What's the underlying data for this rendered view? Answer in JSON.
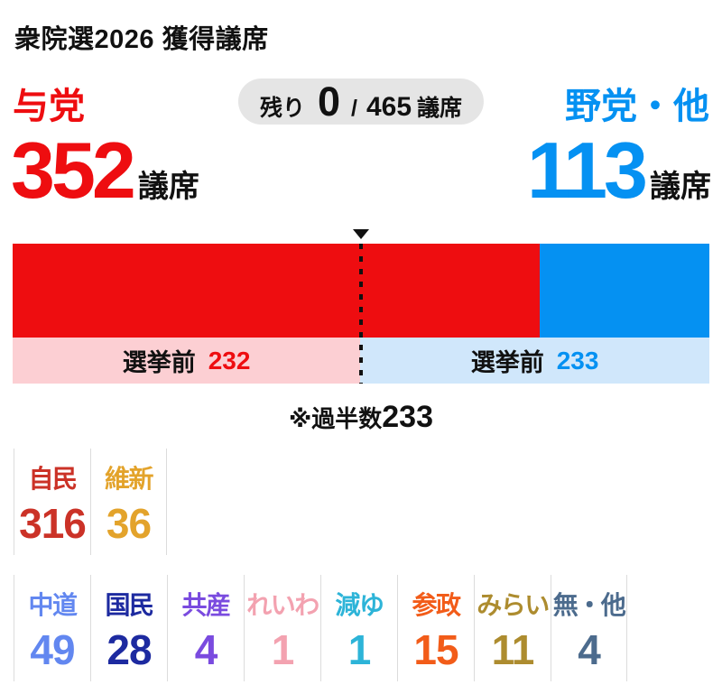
{
  "title": "衆院選2026 獲得議席",
  "header": {
    "ruling_label": "与党",
    "opposition_label": "野党・他",
    "ruling_seats": "352",
    "opposition_seats": "113",
    "seats_unit": "議席",
    "remaining": {
      "prefix": "残り",
      "value": "0",
      "separator": "/",
      "total": "465",
      "unit": "議席"
    }
  },
  "bar": {
    "pre_label": "選挙前",
    "pre_ruling": "232",
    "pre_opposition": "233",
    "majority_prefix": "※過半数",
    "majority_value": "233"
  },
  "colors": {
    "ruling": "#ee0d10",
    "opposition": "#0591f2",
    "ruling_light": "#fccfd3",
    "opposition_light": "#d0e7fb",
    "pill_bg": "#e5e5e5",
    "divider": "#dcdcdc"
  },
  "chart_data": {
    "type": "bar",
    "orientation": "horizontal-stacked",
    "title": "衆院選2026 獲得議席",
    "total_seats": 465,
    "remaining_seats": 0,
    "majority": 233,
    "series": [
      {
        "name": "与党",
        "seats": 352,
        "pre_election_seats": 232,
        "color": "#ee0d10"
      },
      {
        "name": "野党・他",
        "seats": 113,
        "pre_election_seats": 233,
        "color": "#0591f2"
      }
    ],
    "parties": [
      {
        "name": "自民",
        "seats": 316
      },
      {
        "name": "維新",
        "seats": 36
      },
      {
        "name": "中道",
        "seats": 49
      },
      {
        "name": "国民",
        "seats": 28
      },
      {
        "name": "共産",
        "seats": 4
      },
      {
        "name": "れいわ",
        "seats": 1
      },
      {
        "name": "減ゆ",
        "seats": 1
      },
      {
        "name": "参政",
        "seats": 15
      },
      {
        "name": "みらい",
        "seats": 11
      },
      {
        "name": "無・他",
        "seats": 4
      }
    ]
  },
  "parties": {
    "row1": [
      {
        "label": "自民",
        "seats": "316",
        "color": "#cb3227"
      },
      {
        "label": "維新",
        "seats": "36",
        "color": "#e3a32b"
      }
    ],
    "row2": [
      {
        "label": "中道",
        "seats": "49",
        "color": "#6287f0"
      },
      {
        "label": "国民",
        "seats": "28",
        "color": "#1d2aa0"
      },
      {
        "label": "共産",
        "seats": "4",
        "color": "#7a4bdf"
      },
      {
        "label": "れいわ",
        "seats": "1",
        "color": "#f3a2b0"
      },
      {
        "label": "減ゆ",
        "seats": "1",
        "color": "#2db4d8"
      },
      {
        "label": "参政",
        "seats": "15",
        "color": "#f25c19"
      },
      {
        "label": "みらい",
        "seats": "11",
        "color": "#ad8c2f"
      },
      {
        "label": "無・他",
        "seats": "4",
        "color": "#4c6b8d"
      }
    ]
  }
}
